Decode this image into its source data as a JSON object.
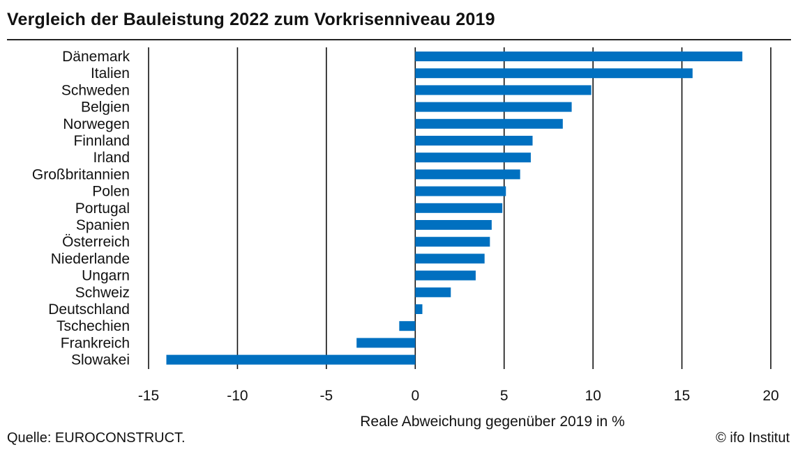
{
  "header": {
    "title": "Vergleich der Bauleistung 2022 zum Vorkrisenniveau 2019"
  },
  "footer": {
    "source": "Quelle: EUROCONSTRUCT.",
    "copyright": "© ifo Institut"
  },
  "chart_data": {
    "type": "bar",
    "orientation": "horizontal",
    "title": "Vergleich der Bauleistung 2022 zum Vorkrisenniveau 2019",
    "xlabel": "Reale Abweichung gegenüber 2019 in %",
    "ylabel": "",
    "xlim": [
      -15,
      20
    ],
    "xticks": [
      -15,
      -10,
      -5,
      0,
      5,
      10,
      15,
      20
    ],
    "grid": "vertical",
    "bar_color": "#0070C0",
    "categories": [
      "Dänemark",
      "Italien",
      "Schweden",
      "Belgien",
      "Norwegen",
      "Finnland",
      "Irland",
      "Großbritannien",
      "Polen",
      "Portugal",
      "Spanien",
      "Österreich",
      "Niederlande",
      "Ungarn",
      "Schweiz",
      "Deutschland",
      "Tschechien",
      "Frankreich",
      "Slowakei"
    ],
    "values": [
      18.4,
      15.6,
      9.9,
      8.8,
      8.3,
      6.6,
      6.5,
      5.9,
      5.1,
      4.9,
      4.3,
      4.2,
      3.9,
      3.4,
      2.0,
      0.4,
      -0.9,
      -3.3,
      -14.0
    ]
  }
}
